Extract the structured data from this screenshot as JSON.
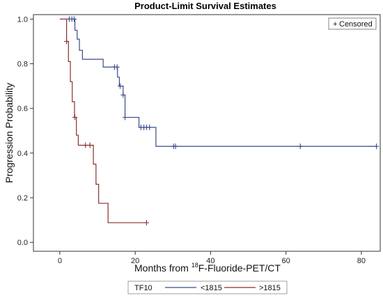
{
  "chart_data": {
    "type": "line",
    "subtype": "kaplan-meier step",
    "title": "Product-Limit Survival Estimates",
    "xlabel": {
      "prefix": "Months from ",
      "superscript": "18",
      "suffix": "F-Fluoride-PET/CT"
    },
    "ylabel": "Progression Probability",
    "xlim": [
      -7,
      85
    ],
    "ylim": [
      -0.04,
      1.02
    ],
    "xticks": [
      0,
      20,
      40,
      60,
      80
    ],
    "yticks": [
      0.0,
      0.2,
      0.4,
      0.6,
      0.8,
      1.0
    ],
    "ytick_labels": [
      "0.0",
      "0.2",
      "0.4",
      "0.6",
      "0.8",
      "1.0"
    ],
    "grid": false,
    "censor_legend": {
      "symbol": "+",
      "label": "Censored",
      "placement": "top-right"
    },
    "legend": {
      "title": "TF10",
      "placement": "bottom"
    },
    "series": [
      {
        "name": "<1815",
        "color": "#3b4a8c",
        "steps": [
          [
            0,
            1.0
          ],
          [
            4.0,
            0.95
          ],
          [
            4.6,
            0.91
          ],
          [
            5.2,
            0.86
          ],
          [
            6.0,
            0.82
          ],
          [
            11.5,
            0.785
          ],
          [
            15.3,
            0.74
          ],
          [
            15.8,
            0.7
          ],
          [
            16.8,
            0.66
          ],
          [
            17.3,
            0.56
          ],
          [
            21.0,
            0.515
          ],
          [
            25.5,
            0.43
          ],
          [
            84,
            0.43
          ]
        ],
        "censored": [
          [
            2.5,
            1.0
          ],
          [
            3.2,
            1.0
          ],
          [
            3.8,
            1.0
          ],
          [
            14.5,
            0.785
          ],
          [
            15.2,
            0.785
          ],
          [
            16.0,
            0.7
          ],
          [
            16.8,
            0.66
          ],
          [
            17.3,
            0.56
          ],
          [
            21.5,
            0.515
          ],
          [
            22.3,
            0.515
          ],
          [
            23.0,
            0.515
          ],
          [
            23.8,
            0.515
          ],
          [
            30.2,
            0.43
          ],
          [
            30.7,
            0.43
          ],
          [
            63.8,
            0.43
          ],
          [
            84.0,
            0.43
          ]
        ]
      },
      {
        "name": ">1815",
        "color": "#8b2e2e",
        "steps": [
          [
            0,
            1.0
          ],
          [
            1.8,
            0.9
          ],
          [
            2.3,
            0.81
          ],
          [
            2.8,
            0.72
          ],
          [
            3.3,
            0.63
          ],
          [
            3.9,
            0.56
          ],
          [
            4.4,
            0.48
          ],
          [
            4.9,
            0.435
          ],
          [
            8.9,
            0.35
          ],
          [
            9.6,
            0.26
          ],
          [
            10.3,
            0.175
          ],
          [
            12.8,
            0.088
          ],
          [
            23.0,
            0.088
          ]
        ],
        "censored": [
          [
            1.8,
            0.9
          ],
          [
            4.0,
            0.56
          ],
          [
            6.8,
            0.435
          ],
          [
            8.0,
            0.435
          ],
          [
            23.0,
            0.088
          ]
        ]
      }
    ]
  }
}
